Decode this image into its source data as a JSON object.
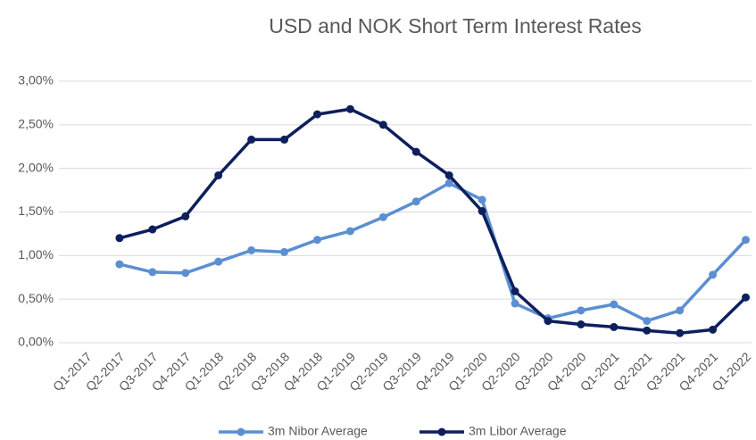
{
  "chart_data": {
    "type": "line",
    "title": "USD and NOK Short Term Interest Rates",
    "categories": [
      "Q1-2017",
      "Q2-2017",
      "Q3-2017",
      "Q4-2017",
      "Q1-2018",
      "Q2-2018",
      "Q3-2018",
      "Q4-2018",
      "Q1-2019",
      "Q2-2019",
      "Q3-2019",
      "Q4-2019",
      "Q1-2020",
      "Q2-2020",
      "Q3-2020",
      "Q4-2020",
      "Q1-2021",
      "Q2-2021",
      "Q3-2021",
      "Q4-2021",
      "Q1-2022"
    ],
    "series": [
      {
        "name": "3m Nibor Average",
        "color": "#5b8fd1",
        "values": [
          null,
          0.9,
          0.81,
          0.8,
          0.93,
          1.06,
          1.04,
          1.18,
          1.28,
          1.44,
          1.62,
          1.83,
          1.64,
          0.45,
          0.28,
          0.37,
          0.44,
          0.25,
          0.37,
          0.78,
          1.18
        ]
      },
      {
        "name": "3m Libor Average",
        "color": "#0d1f5c",
        "values": [
          null,
          1.2,
          1.3,
          1.45,
          1.92,
          2.33,
          2.33,
          2.62,
          2.68,
          2.5,
          2.19,
          1.92,
          1.51,
          0.59,
          0.25,
          0.21,
          0.18,
          0.14,
          0.11,
          0.15,
          0.52
        ]
      }
    ],
    "ylim": [
      0,
      3
    ],
    "yticks": [
      {
        "value": 0,
        "label": "0,00%"
      },
      {
        "value": 0.5,
        "label": "0,50%"
      },
      {
        "value": 1,
        "label": "1,00%"
      },
      {
        "value": 1.5,
        "label": "1,50%"
      },
      {
        "value": 2,
        "label": "2,00%"
      },
      {
        "value": 2.5,
        "label": "2,50%"
      },
      {
        "value": 3,
        "label": "3,00%"
      }
    ],
    "grid": true,
    "legend": "bottom"
  }
}
